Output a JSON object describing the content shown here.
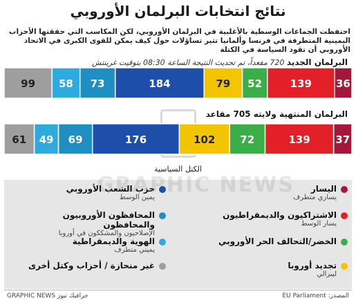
{
  "title": "نتائج انتخابات البرلمان الأوروبي",
  "subtitle": "احتفظت الجماعات الوسطية بالأغلبية في البرلمان الأوروبي، لكن المكاسب التي حققتها الأحزاب اليمينية المتطرفة في فرنسا وألمانيا تثير تساؤلات حول كيف يمكن للقوى الكبرى في الاتحاد الأوروبي أن تقود السياسة في الكتلة",
  "new_parliament_label": "البرلمان الجديد",
  "new_parliament_note": "720 مقعداً، تم تحديث النتيجة الساعة 08:30 بتوقيت غرينتش",
  "outgoing_label": "البرلمان المنتهية ولايته 705 مقاعد",
  "legend_heading": "الكتل السياسية",
  "watermark": "GRAPHIC NEWS",
  "source": "المصدر: EU Parliament",
  "credit": "GRAPHIC NEWS جرافيك نيوز",
  "chart_data": [
    {
      "type": "bar",
      "name": "البرلمان الجديد",
      "order": [
        "left",
        "sd",
        "greens",
        "renew",
        "epp",
        "ecr",
        "id",
        "other"
      ],
      "values": [
        36,
        139,
        52,
        79,
        184,
        73,
        58,
        99
      ]
    },
    {
      "type": "bar",
      "name": "البرلمان المنتهية ولايته 705 مقاعد",
      "order": [
        "left",
        "sd",
        "greens",
        "renew",
        "epp",
        "ecr",
        "id",
        "other"
      ],
      "values": [
        37,
        139,
        72,
        102,
        176,
        69,
        49,
        61
      ]
    }
  ],
  "groups": {
    "left": {
      "name": "اليسار",
      "desc": "يساري متطرف",
      "color": "#a3173a"
    },
    "sd": {
      "name": "الاشتراكيون والديمقراطيون",
      "desc": "يسار الوسط",
      "color": "#e32028"
    },
    "greens": {
      "name": "الخضر/التحالف الحر الأوروبي",
      "desc": "",
      "color": "#3cae47"
    },
    "renew": {
      "name": "تجديد أوروبا",
      "desc": "ليبرالي",
      "color": "#f2c500"
    },
    "epp": {
      "name": "حزب الشعب الأوروبي",
      "desc": "يمين الوسط",
      "color": "#1d4faa"
    },
    "ecr": {
      "name": "المحافظون الأوروبيون والمحافظون",
      "desc": "الإصلاحيون والمشككون في أوروبا",
      "color": "#1f8fc2"
    },
    "id": {
      "name": "الهوية والديمقراطية",
      "desc": "يميني متطرف",
      "color": "#2eaadc"
    },
    "other": {
      "name": "غير منحازة / أحزاب وكتل أخرى",
      "desc": "",
      "color": "#9e9e9e"
    }
  }
}
